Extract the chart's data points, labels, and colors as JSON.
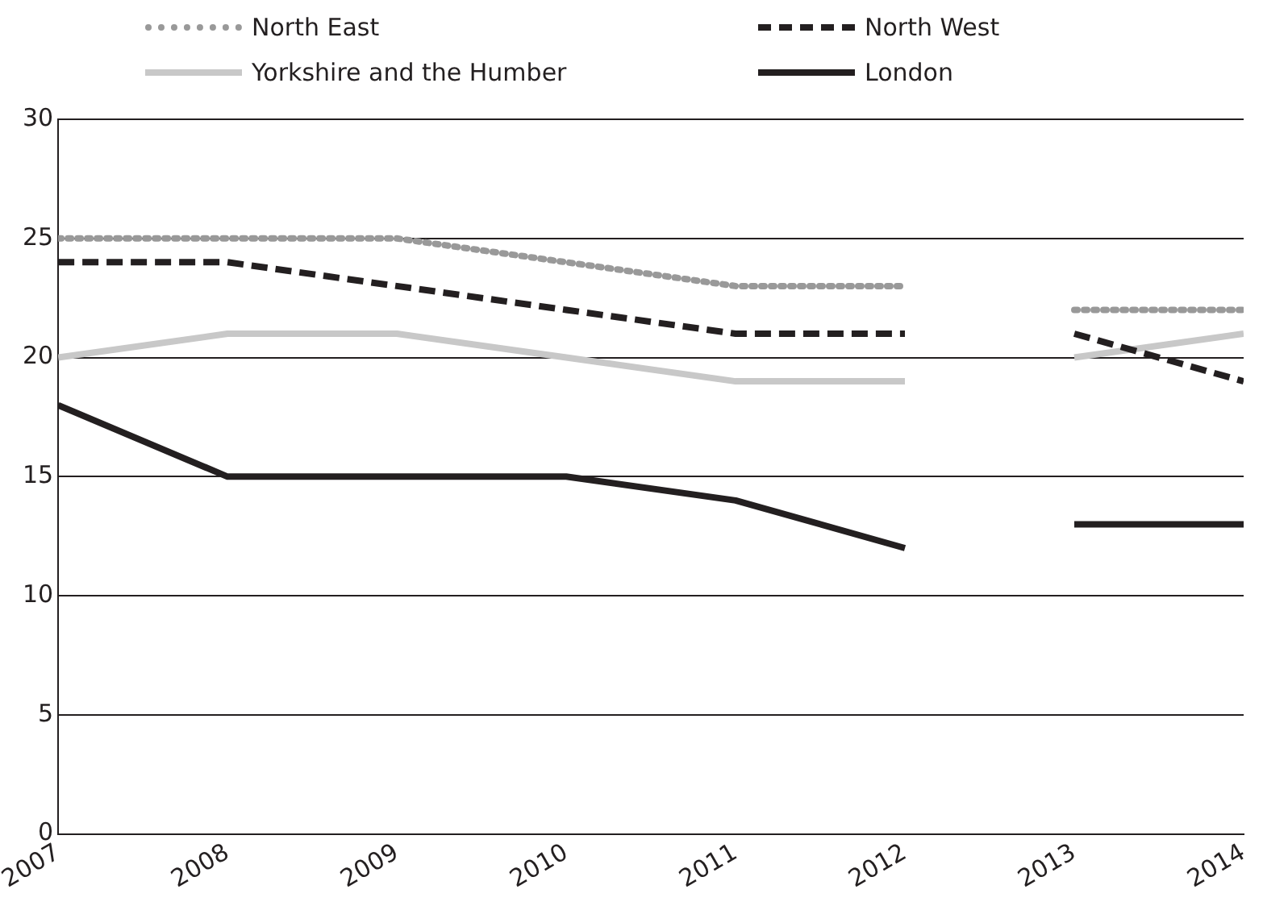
{
  "chart_data": {
    "type": "line",
    "x": [
      2007,
      2008,
      2009,
      2010,
      2011,
      2012,
      2012.5,
      2013,
      2014
    ],
    "xlim": [
      2007,
      2014
    ],
    "xticks": [
      2007,
      2008,
      2009,
      2010,
      2011,
      2012,
      2013,
      2014
    ],
    "ylim": [
      0,
      30
    ],
    "yticks": [
      0,
      5,
      10,
      15,
      20,
      25,
      30
    ],
    "grid": "y",
    "legend": "top",
    "marker": "none",
    "series": [
      {
        "name": "North East",
        "color": "#999999",
        "line_style": "dotted",
        "values": [
          25,
          25,
          25,
          24,
          23,
          23,
          null,
          22,
          22
        ]
      },
      {
        "name": "North West",
        "color": "#231f20",
        "line_style": "dashed",
        "values": [
          24,
          24,
          23,
          22,
          21,
          21,
          null,
          21,
          19
        ]
      },
      {
        "name": "Yorkshire and the Humber",
        "color": "#c8c8c8",
        "line_style": "solid",
        "values": [
          20,
          21,
          21,
          20,
          19,
          19,
          null,
          20,
          21
        ]
      },
      {
        "name": "London",
        "color": "#231f20",
        "line_style": "solid",
        "values": [
          18,
          15,
          15,
          15,
          14,
          12,
          null,
          13,
          13
        ]
      }
    ]
  }
}
